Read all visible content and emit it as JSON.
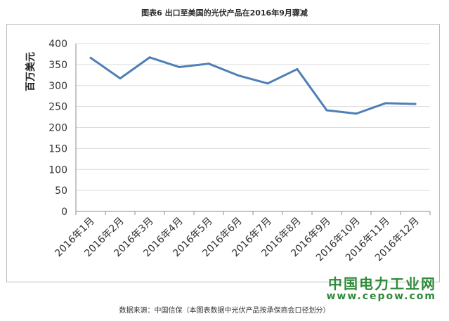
{
  "chart_data": {
    "type": "line",
    "title": "图表6  出口至美国的光伏产品在2016年9月骤减",
    "ylabel": "百万美元",
    "xlabel": "",
    "ylim": [
      0,
      400
    ],
    "yticks": [
      0,
      50,
      100,
      150,
      200,
      250,
      300,
      350,
      400
    ],
    "grid": true,
    "categories": [
      "2016年1月",
      "2016年2月",
      "2016年3月",
      "2016年4月",
      "2016年5月",
      "2016年6月",
      "2016年7月",
      "2016年8月",
      "2016年9月",
      "2016年10月",
      "2016年11月",
      "2016年12月"
    ],
    "series": [
      {
        "values": [
          366,
          317,
          367,
          344,
          352,
          324,
          305,
          339,
          241,
          233,
          258,
          256
        ]
      }
    ],
    "colors": {
      "line": "#4f7fb5",
      "grid": "#dcdcdc",
      "axis": "#8c8c8c",
      "text": "#333333"
    }
  },
  "footer": {
    "source": "数据来源：中国信保（本图表数据中光伏产品按承保商会口径划分）"
  },
  "watermark": {
    "name": "中国电力工业网",
    "url": "www.cepow.com"
  }
}
